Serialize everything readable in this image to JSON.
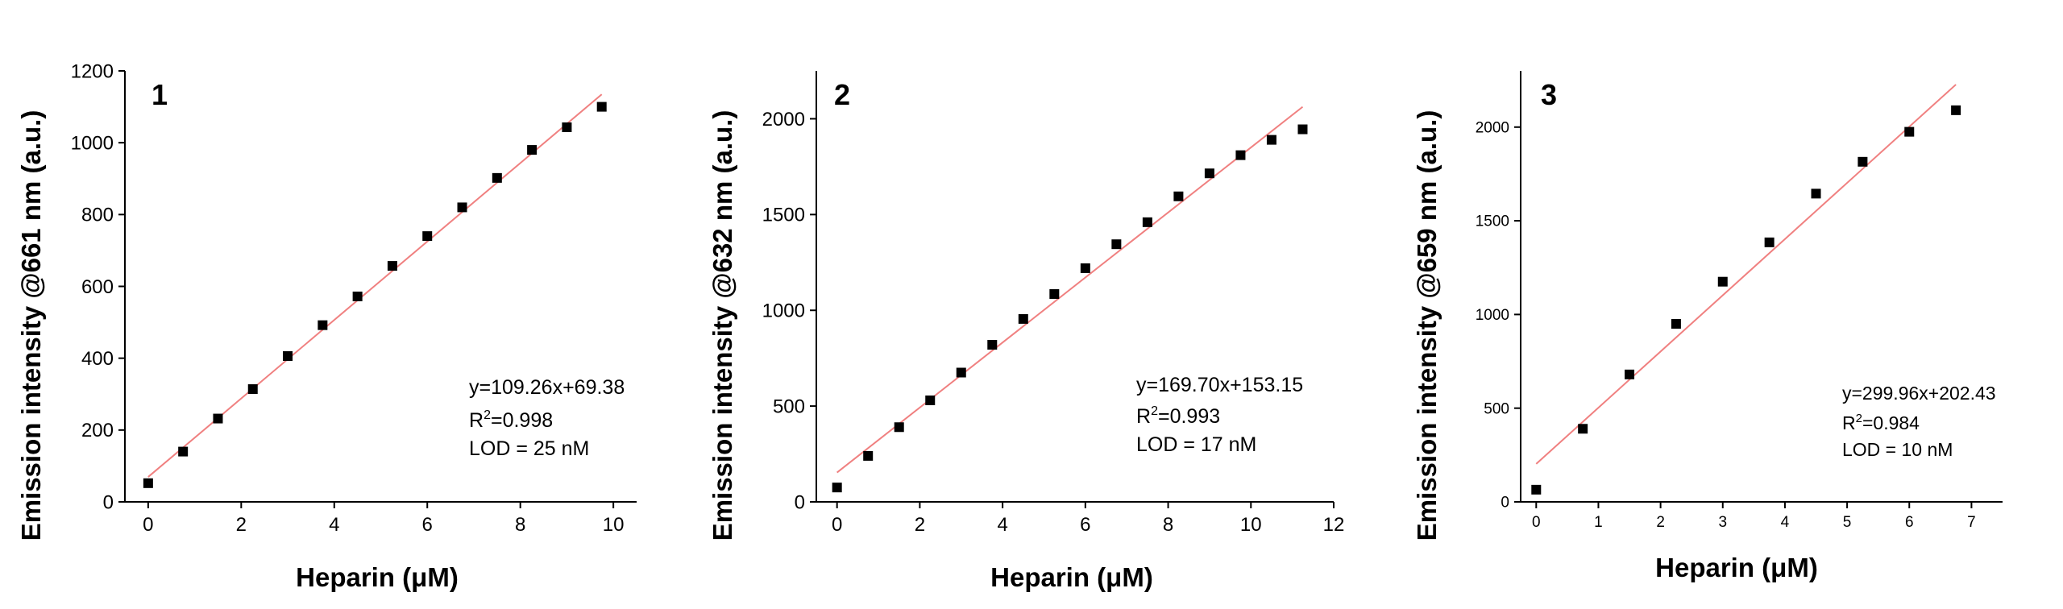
{
  "chart_data": [
    {
      "type": "scatter",
      "panel_label": "1",
      "xlabel": "Heparin (μM)",
      "ylabel": "Emission intensity @661 nm (a.u.)",
      "xlim": [
        -0.5,
        10.5
      ],
      "ylim": [
        0,
        1200
      ],
      "xticks": [
        0,
        2,
        4,
        6,
        8,
        10
      ],
      "yticks": [
        0,
        200,
        400,
        600,
        800,
        1000,
        1200
      ],
      "series": [
        {
          "x": [
            0,
            0.75,
            1.5,
            2.25,
            3,
            3.75,
            4.5,
            5.25,
            6,
            6.75,
            7.5,
            8.25,
            9,
            9.75
          ],
          "y": [
            52,
            140,
            232,
            314,
            406,
            492,
            572,
            657,
            740,
            820,
            902,
            980,
            1043,
            1100
          ]
        }
      ],
      "fit": {
        "slope": 109.26,
        "intercept": 69.38,
        "x_range": [
          0,
          9.75
        ],
        "color": "#f08080"
      },
      "annotation": {
        "equation": "y=109.26x+69.38",
        "r2_prefix": "R",
        "r2_sup": "2",
        "r2_value": "=0.998",
        "lod": "LOD = 25 nM"
      }
    },
    {
      "type": "scatter",
      "panel_label": "2",
      "xlabel": "Heparin (μM)",
      "ylabel": "Emission intensity @632 nm (a.u.)",
      "xlim": [
        -0.5,
        12
      ],
      "ylim": [
        0,
        2250
      ],
      "xticks": [
        0,
        2,
        4,
        6,
        8,
        10,
        12
      ],
      "yticks": [
        0,
        500,
        1000,
        1500,
        2000
      ],
      "series": [
        {
          "x": [
            0,
            0.75,
            1.5,
            2.25,
            3,
            3.75,
            4.5,
            5.25,
            6,
            6.75,
            7.5,
            8.25,
            9,
            9.75,
            10.5,
            11.25
          ],
          "y": [
            75,
            240,
            390,
            530,
            675,
            820,
            955,
            1085,
            1220,
            1345,
            1460,
            1595,
            1715,
            1810,
            1890,
            1945
          ]
        }
      ],
      "fit": {
        "slope": 169.7,
        "intercept": 153.15,
        "x_range": [
          0,
          11.25
        ],
        "color": "#f08080"
      },
      "annotation": {
        "equation": "y=169.70x+153.15",
        "r2_prefix": "R",
        "r2_sup": "2",
        "r2_value": "=0.993",
        "lod": "LOD = 17 nM"
      }
    },
    {
      "type": "scatter",
      "panel_label": "3",
      "xlabel": "Heparin (μM)",
      "ylabel": "Emission intensity @659 nm (a.u.)",
      "xlim": [
        -0.25,
        7.5
      ],
      "ylim": [
        0,
        2300
      ],
      "xticks": [
        0,
        1,
        2,
        3,
        4,
        5,
        6,
        7
      ],
      "yticks": [
        0,
        500,
        1000,
        1500,
        2000
      ],
      "series": [
        {
          "x": [
            0,
            0.75,
            1.5,
            2.25,
            3,
            3.75,
            4.5,
            5.25,
            6,
            6.75
          ],
          "y": [
            65,
            390,
            680,
            950,
            1175,
            1385,
            1645,
            1815,
            1975,
            2090
          ]
        }
      ],
      "fit": {
        "slope": 299.96,
        "intercept": 202.43,
        "x_range": [
          0,
          6.75
        ],
        "color": "#f08080"
      },
      "annotation": {
        "equation": "y=299.96x+202.43",
        "r2_prefix": "R",
        "r2_sup": "2",
        "r2_value": "=0.984",
        "lod": "LOD = 10 nM"
      }
    }
  ]
}
